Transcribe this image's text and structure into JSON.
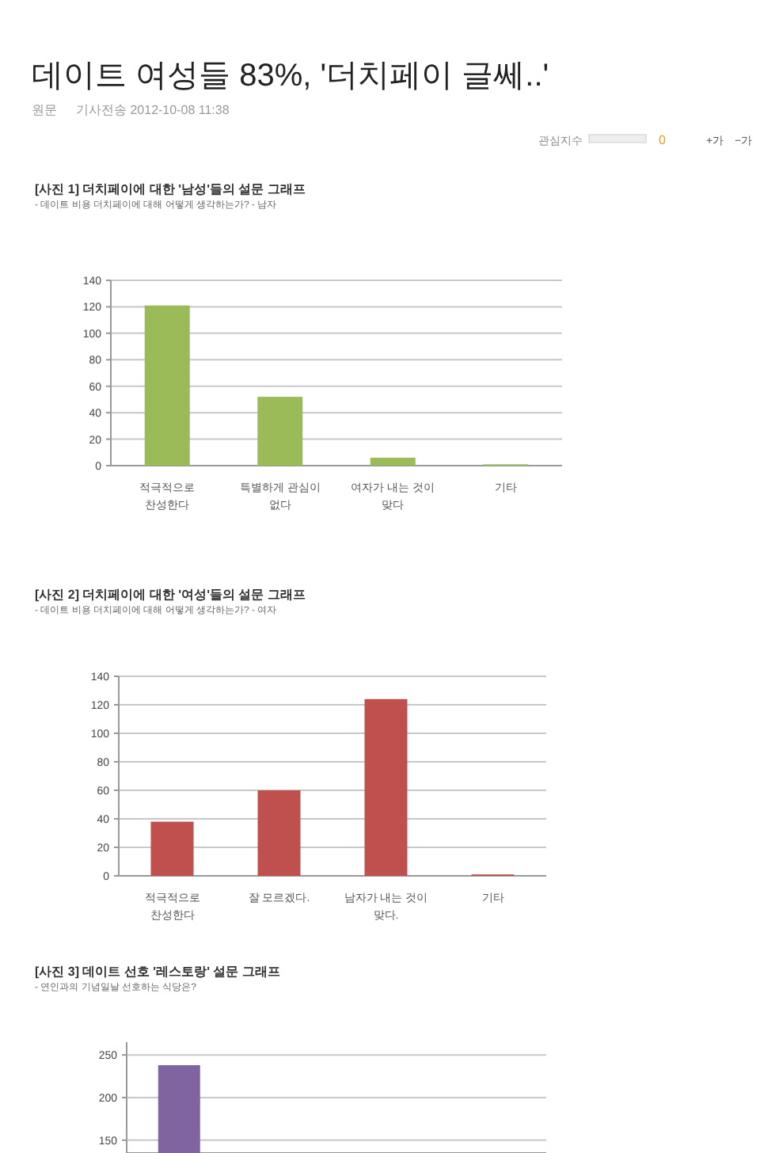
{
  "chart_data": [
    {
      "type": "other",
      "title": "데이트 여성들 83%, '더치페이 글쎄..'",
      "annotations": [
        "원문",
        "기사전송 2012-10-08 11:38",
        "관심지수",
        "0",
        "+가",
        "−가"
      ]
    },
    {
      "type": "bar",
      "title": "[사진 1] 더치페이에 대한 '남성'들의 설문 그래프",
      "subtitle": "- 데이트 비용 더치페이에 대해 어떻게 생각하는가? - 남자",
      "categories": [
        "적극적으로 찬성한다",
        "특별하게 관심이 없다",
        "여자가 내는 것이 맞다",
        "기타"
      ],
      "values": [
        121,
        52,
        6,
        1
      ],
      "color": "#9bbb59",
      "ylim": [
        0,
        140
      ],
      "yticks": [
        0,
        20,
        40,
        60,
        80,
        100,
        120,
        140
      ],
      "grid": "y"
    },
    {
      "type": "bar",
      "title": "[사진 2] 더치페이에 대한 '여성'들의 설문 그래프",
      "subtitle": "- 데이트 비용 더치페이에 대해 어떻게 생각하는가? - 여자",
      "categories": [
        "적극적으로 찬성한다",
        "잘 모르겠다.",
        "남자가 내는 것이 맞다.",
        "기타"
      ],
      "values": [
        38,
        60,
        124,
        1
      ],
      "color": "#c0504d",
      "ylim": [
        0,
        140
      ],
      "yticks": [
        0,
        20,
        40,
        60,
        80,
        100,
        120,
        140
      ],
      "grid": "y"
    },
    {
      "type": "bar",
      "title": "[사진 3] 데이트 선호 '레스토랑' 설문 그래프",
      "subtitle": "- 연인과의 기념일날 선호하는 식당은?",
      "categories": [
        null,
        null,
        null,
        null
      ],
      "values": [
        238,
        null,
        null,
        null
      ],
      "color": "#8064a2",
      "ylim": [
        135,
        265
      ],
      "yticks": [
        150,
        200,
        250
      ],
      "grid": "y"
    }
  ]
}
